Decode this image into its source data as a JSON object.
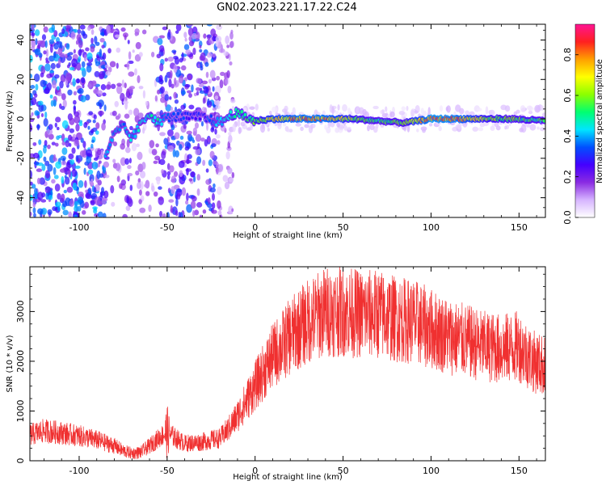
{
  "title": "GN02.2023.221.17.22.C24",
  "chart_data": [
    {
      "type": "heatmap",
      "title": "GN02.2023.221.17.22.C24",
      "xlabel": "Height of straight line (km)",
      "ylabel": "Frequency (Hz)",
      "xlim": [
        -128,
        165
      ],
      "ylim": [
        -50,
        48
      ],
      "xticks": [
        -100,
        -50,
        0,
        50,
        100,
        150
      ],
      "xtick_labels": [
        "-100",
        "-50",
        "0",
        "50",
        "100",
        "150"
      ],
      "yticks": [
        -40,
        -20,
        0,
        20,
        40
      ],
      "ytick_labels": [
        "-40",
        "-20",
        "0",
        "20",
        "40"
      ],
      "colorbar": {
        "label": "Normalized spectral amplitude",
        "range": [
          0,
          0.95
        ],
        "ticks": [
          0.0,
          0.2,
          0.4,
          0.6,
          0.8
        ],
        "tick_labels": [
          "0.0",
          "0.2",
          "0.4",
          "0.6",
          "0.8"
        ],
        "colormap": [
          "#ffffff",
          "#d6b4ff",
          "#8a2be2",
          "#4400ff",
          "#0050ff",
          "#00e5ff",
          "#00ff70",
          "#8cff00",
          "#ffff00",
          "#ffa000",
          "#ff2020",
          "#ff1493"
        ]
      },
      "signal_track": [
        {
          "x": -85,
          "f": -18,
          "amp": 0.45
        },
        {
          "x": -80,
          "f": -8,
          "amp": 0.4
        },
        {
          "x": -75,
          "f": -4,
          "amp": 0.4
        },
        {
          "x": -70,
          "f": -10,
          "amp": 0.45
        },
        {
          "x": -65,
          "f": -3,
          "amp": 0.45
        },
        {
          "x": -60,
          "f": 3,
          "amp": 0.5
        },
        {
          "x": -55,
          "f": -2,
          "amp": 0.5
        },
        {
          "x": -50,
          "f": 1,
          "amp": 0.35
        },
        {
          "x": -30,
          "f": 1,
          "amp": 0.3
        },
        {
          "x": -20,
          "f": -2,
          "amp": 0.45
        },
        {
          "x": -12,
          "f": 3,
          "amp": 0.55
        },
        {
          "x": -5,
          "f": 1,
          "amp": 0.55
        },
        {
          "x": 0,
          "f": -1,
          "amp": 0.6
        },
        {
          "x": 10,
          "f": 0,
          "amp": 0.75
        },
        {
          "x": 25,
          "f": 0,
          "amp": 0.85
        },
        {
          "x": 40,
          "f": 0,
          "amp": 0.85
        },
        {
          "x": 55,
          "f": 0,
          "amp": 0.65
        },
        {
          "x": 70,
          "f": -1,
          "amp": 0.55
        },
        {
          "x": 85,
          "f": -2,
          "amp": 0.6
        },
        {
          "x": 100,
          "f": 0,
          "amp": 0.9
        },
        {
          "x": 115,
          "f": 0,
          "amp": 0.85
        },
        {
          "x": 130,
          "f": 0,
          "amp": 0.65
        },
        {
          "x": 145,
          "f": 0,
          "amp": 0.6
        },
        {
          "x": 165,
          "f": -1,
          "amp": 0.55
        }
      ]
    },
    {
      "type": "line",
      "xlabel": "Height of straight line (km)",
      "ylabel": "SNR (10 * v/v)",
      "xlim": [
        -128,
        165
      ],
      "ylim": [
        0,
        3900
      ],
      "xticks": [
        -100,
        -50,
        0,
        50,
        100,
        150
      ],
      "xtick_labels": [
        "-100",
        "-50",
        "0",
        "50",
        "100",
        "150"
      ],
      "yticks": [
        0,
        1000,
        2000,
        3000
      ],
      "ytick_labels": [
        "0",
        "1000",
        "2000",
        "3000"
      ],
      "series": [
        {
          "name": "SNR",
          "color": "#f03030",
          "x": [
            -128,
            -120,
            -110,
            -100,
            -90,
            -80,
            -75,
            -70,
            -65,
            -60,
            -55,
            -50,
            -45,
            -40,
            -35,
            -30,
            -25,
            -20,
            -15,
            -10,
            -5,
            0,
            5,
            10,
            20,
            30,
            40,
            50,
            60,
            70,
            80,
            90,
            100,
            110,
            120,
            130,
            140,
            150,
            158,
            165
          ],
          "y": [
            520,
            600,
            560,
            500,
            420,
            300,
            200,
            150,
            170,
            300,
            450,
            580,
            450,
            350,
            360,
            380,
            420,
            450,
            650,
            900,
            1200,
            1500,
            1800,
            2100,
            2500,
            2800,
            3000,
            3000,
            2950,
            2950,
            2850,
            2800,
            2650,
            2500,
            2400,
            2300,
            2250,
            2300,
            2000,
            1900
          ]
        }
      ]
    }
  ]
}
